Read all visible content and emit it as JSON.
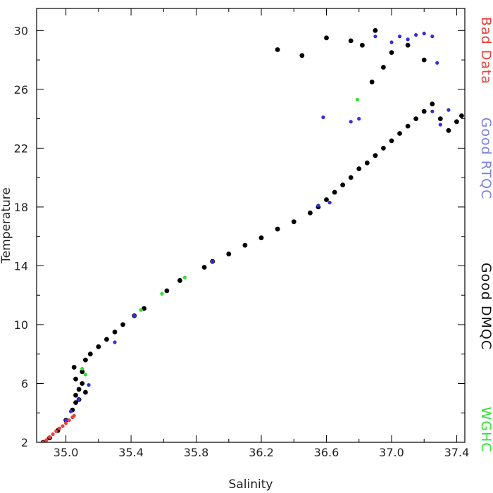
{
  "chart_data": {
    "type": "scatter",
    "title": "",
    "xlabel": "Salinity",
    "ylabel": "Temperature",
    "xlim": [
      34.82,
      37.45
    ],
    "ylim": [
      2,
      31.5
    ],
    "xticks": [
      35.0,
      35.4,
      35.8,
      36.2,
      36.6,
      37.0,
      37.4
    ],
    "xtick_labels": [
      "35.0",
      "35.4",
      "35.8",
      "36.2",
      "36.6",
      "37.0",
      "37.4"
    ],
    "yticks": [
      2,
      6,
      10,
      14,
      18,
      22,
      26,
      30
    ],
    "ytick_labels": [
      "2",
      "6",
      "10",
      "14",
      "18",
      "22",
      "26",
      "30"
    ],
    "grid": false,
    "legend_placement": "right, vertical",
    "series": [
      {
        "name": "Bad Data",
        "color": "#e8423f",
        "x": [
          34.86,
          34.88,
          34.9,
          34.92,
          34.94,
          34.96,
          34.98,
          35.0,
          35.02,
          35.04,
          35.05
        ],
        "y": [
          2.0,
          2.15,
          2.35,
          2.55,
          2.75,
          2.95,
          3.1,
          3.3,
          3.5,
          3.7,
          3.8
        ]
      },
      {
        "name": "Good RTQC",
        "color": "#3030d8",
        "x": [
          35.0,
          35.03,
          35.08,
          35.14,
          35.3,
          35.42,
          35.9,
          36.55,
          36.62,
          36.75,
          36.8,
          36.9,
          37.0,
          37.05,
          37.1,
          37.15,
          37.2,
          37.25,
          37.28,
          37.25,
          37.3,
          37.35,
          36.58
        ],
        "y": [
          3.5,
          4.1,
          4.9,
          5.9,
          8.8,
          10.6,
          14.3,
          18.1,
          18.3,
          23.8,
          24.0,
          29.6,
          29.2,
          29.6,
          29.4,
          29.7,
          29.8,
          29.6,
          27.8,
          24.5,
          23.6,
          24.6,
          24.1
        ]
      },
      {
        "name": "Good DMQC",
        "color": "#000000",
        "points": [
          [
            34.86,
            2.0
          ],
          [
            34.9,
            2.3
          ],
          [
            34.95,
            2.8
          ],
          [
            35.0,
            3.5
          ],
          [
            35.04,
            4.2
          ],
          [
            35.06,
            4.7
          ],
          [
            35.08,
            4.9
          ],
          [
            35.06,
            5.2
          ],
          [
            35.08,
            5.6
          ],
          [
            35.1,
            6.0
          ],
          [
            35.12,
            5.4
          ],
          [
            35.06,
            6.3
          ],
          [
            35.1,
            6.8
          ],
          [
            35.05,
            7.1
          ],
          [
            35.12,
            7.6
          ],
          [
            35.15,
            8.0
          ],
          [
            35.2,
            8.5
          ],
          [
            35.25,
            9.0
          ],
          [
            35.3,
            9.5
          ],
          [
            35.35,
            10.0
          ],
          [
            35.42,
            10.6
          ],
          [
            35.48,
            11.1
          ],
          [
            35.62,
            12.3
          ],
          [
            35.7,
            13.0
          ],
          [
            35.85,
            13.9
          ],
          [
            35.9,
            14.3
          ],
          [
            36.0,
            14.8
          ],
          [
            36.1,
            15.4
          ],
          [
            36.2,
            15.9
          ],
          [
            36.3,
            16.5
          ],
          [
            36.4,
            17.0
          ],
          [
            36.5,
            17.6
          ],
          [
            36.55,
            18.0
          ],
          [
            36.6,
            18.5
          ],
          [
            36.65,
            19.0
          ],
          [
            36.7,
            19.5
          ],
          [
            36.75,
            20.0
          ],
          [
            36.8,
            20.6
          ],
          [
            36.85,
            21.0
          ],
          [
            36.9,
            21.5
          ],
          [
            36.95,
            22.0
          ],
          [
            37.0,
            22.5
          ],
          [
            37.05,
            23.0
          ],
          [
            37.1,
            23.5
          ],
          [
            37.15,
            24.0
          ],
          [
            37.2,
            24.5
          ],
          [
            37.25,
            25.0
          ],
          [
            37.3,
            24.0
          ],
          [
            37.35,
            23.2
          ],
          [
            37.4,
            23.8
          ],
          [
            37.43,
            24.2
          ],
          [
            36.88,
            26.5
          ],
          [
            36.95,
            27.5
          ],
          [
            37.0,
            28.5
          ],
          [
            37.1,
            29.0
          ],
          [
            37.2,
            28.0
          ],
          [
            36.82,
            29.0
          ],
          [
            36.75,
            29.3
          ],
          [
            36.6,
            29.5
          ],
          [
            36.3,
            28.7
          ],
          [
            36.45,
            28.3
          ],
          [
            36.9,
            30.0
          ]
        ]
      },
      {
        "name": "WGHC",
        "color": "#33e033",
        "x": [
          35.1,
          35.12,
          35.46,
          35.59,
          35.73,
          36.79
        ],
        "y": [
          7.0,
          6.6,
          11.0,
          12.1,
          13.2,
          25.3
        ]
      }
    ],
    "legend": [
      {
        "label": "Bad Data",
        "color": "#e8423f"
      },
      {
        "label": "Good RTQC",
        "color": "#7f7fe0"
      },
      {
        "label": "Good DMQC",
        "color": "#111111"
      },
      {
        "label": "WGHC",
        "color": "#33e033"
      }
    ]
  }
}
